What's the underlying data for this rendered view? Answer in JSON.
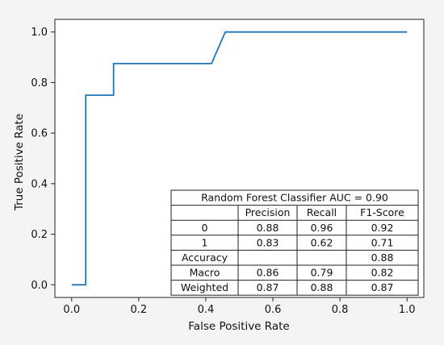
{
  "chart_data": {
    "type": "line",
    "xlabel": "False Positive Rate",
    "ylabel": "True Positive Rate",
    "xlim": [
      -0.05,
      1.05
    ],
    "ylim": [
      -0.05,
      1.05
    ],
    "xticks": [
      "0.0",
      "0.2",
      "0.4",
      "0.6",
      "0.8",
      "1.0"
    ],
    "yticks": [
      "0.0",
      "0.2",
      "0.4",
      "0.6",
      "0.8",
      "1.0"
    ],
    "grid": false,
    "series": [
      {
        "color": "#1f77b4",
        "x": [
          0.0,
          0.042,
          0.042,
          0.125,
          0.125,
          0.417,
          0.458,
          1.0
        ],
        "y": [
          0.0,
          0.0,
          0.75,
          0.75,
          0.875,
          0.875,
          1.0,
          1.0
        ]
      }
    ],
    "table": {
      "title": "Random Forest Classifier AUC = 0.90",
      "columns": [
        "",
        "Precision",
        "Recall",
        "F1-Score"
      ],
      "rows": [
        [
          "0",
          "0.88",
          "0.96",
          "0.92"
        ],
        [
          "1",
          "0.83",
          "0.62",
          "0.71"
        ],
        [
          "Accuracy",
          "",
          "",
          "0.88"
        ],
        [
          "Macro",
          "0.86",
          "0.79",
          "0.82"
        ],
        [
          "Weighted",
          "0.87",
          "0.88",
          "0.87"
        ]
      ]
    }
  }
}
